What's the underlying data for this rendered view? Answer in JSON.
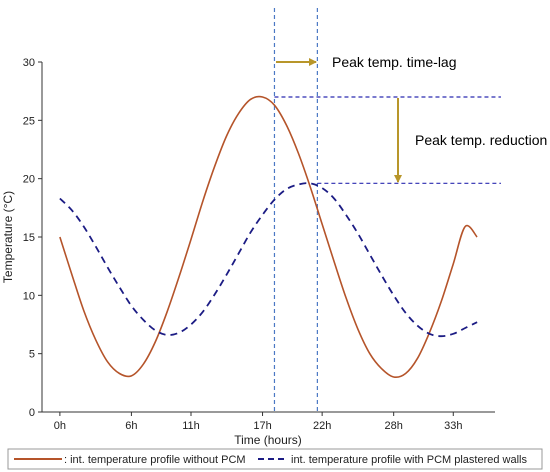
{
  "chart_data": {
    "type": "line",
    "xlabel": "Time (hours)",
    "ylabel": "Temperature (°C)",
    "xlim": [
      -1.5,
      36.5
    ],
    "ylim": [
      0,
      30
    ],
    "x_ticks": [
      0,
      6,
      11,
      17,
      22,
      28,
      33
    ],
    "x_tick_labels": [
      "0h",
      "6h",
      "11h",
      "17h",
      "22h",
      "28h",
      "33h"
    ],
    "y_ticks": [
      0,
      5,
      10,
      15,
      20,
      25,
      30
    ],
    "y_tick_labels": [
      "0",
      "5",
      "10",
      "15",
      "20",
      "25",
      "30"
    ],
    "series": [
      {
        "name": ": int. temperature profile without PCM",
        "color": "#b5542a",
        "style": "solid",
        "x": [
          0,
          1,
          2,
          3,
          4,
          5,
          6,
          7,
          8,
          9,
          10,
          11,
          12,
          13,
          14,
          15,
          16,
          17,
          18,
          19,
          20,
          21,
          22,
          23,
          24,
          25,
          26,
          27,
          28,
          29,
          30,
          31,
          32,
          33,
          34,
          35
        ],
        "y": [
          15.0,
          11.8,
          8.7,
          6.2,
          4.3,
          3.3,
          3.1,
          4.1,
          6.0,
          8.6,
          11.6,
          14.8,
          18.1,
          21.1,
          23.7,
          25.6,
          26.8,
          27.0,
          26.3,
          24.6,
          22.2,
          19.3,
          16.1,
          12.9,
          9.8,
          7.1,
          5.0,
          3.7,
          3.0,
          3.3,
          4.6,
          6.8,
          9.5,
          12.7,
          15.9,
          15.0
        ]
      },
      {
        "name": "int. temperature profile with PCM plastered walls",
        "color": "#1c1c84",
        "style": "dashed",
        "x": [
          0,
          1,
          2,
          3,
          4,
          5,
          6,
          7,
          8,
          9,
          10,
          11,
          12,
          13,
          14,
          15,
          16,
          17,
          18,
          19,
          20,
          21,
          22,
          23,
          24,
          25,
          26,
          27,
          28,
          29,
          30,
          31,
          32,
          33,
          34,
          35
        ],
        "y": [
          18.3,
          17.3,
          15.9,
          14.2,
          12.4,
          10.7,
          9.1,
          7.9,
          7.0,
          6.6,
          6.8,
          7.5,
          8.6,
          10.1,
          11.8,
          13.6,
          15.4,
          16.9,
          18.2,
          19.1,
          19.5,
          19.6,
          19.2,
          18.3,
          16.9,
          15.3,
          13.5,
          11.7,
          10.0,
          8.5,
          7.4,
          6.7,
          6.5,
          6.7,
          7.2,
          7.7
        ]
      }
    ],
    "reference_lines": [
      {
        "orientation": "vertical",
        "x": 18.0,
        "color": "#4a78c4"
      },
      {
        "orientation": "vertical",
        "x": 21.6,
        "color": "#4a78c4"
      },
      {
        "orientation": "horizontal",
        "y": 27.0,
        "x_from": 18.0,
        "x_to": 37.0,
        "color": "#2b2bb0"
      },
      {
        "orientation": "horizontal",
        "y": 19.6,
        "x_from": 21.6,
        "x_to": 37.0,
        "color": "#2b2bb0"
      }
    ],
    "annotations": [
      {
        "text": "Peak temp. time-lag",
        "arrow": "horizontal",
        "arrow_color": "#b8962a"
      },
      {
        "text": "Peak temp. reduction",
        "arrow": "vertical",
        "arrow_color": "#b8962a"
      }
    ],
    "legend": {
      "position": "bottom",
      "items": [
        ": int. temperature profile without PCM",
        "int. temperature profile with PCM plastered walls"
      ]
    },
    "grid": false
  }
}
